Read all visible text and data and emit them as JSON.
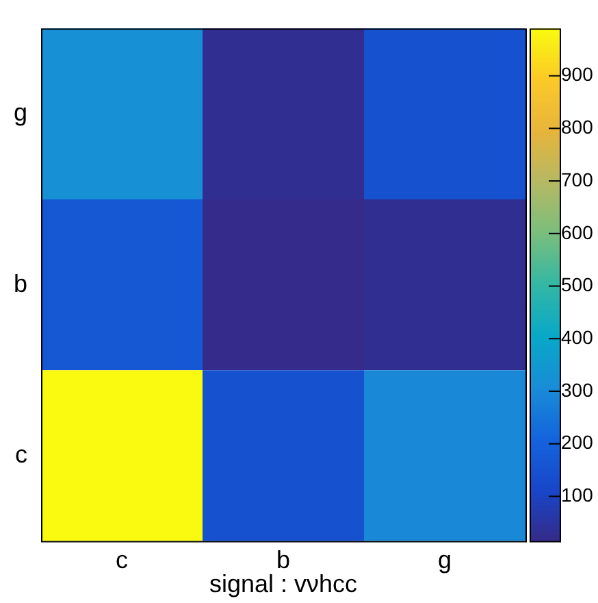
{
  "chart_data": {
    "type": "heatmap",
    "xlabel": "signal : vνhcc",
    "categories": [
      "c",
      "b",
      "g"
    ],
    "y_categories": [
      "g",
      "b",
      "c"
    ],
    "cells": [
      [
        320,
        30,
        150
      ],
      [
        170,
        20,
        30
      ],
      [
        990,
        150,
        300
      ]
    ],
    "clim": [
      15,
      990
    ],
    "cticks": [
      100,
      200,
      300,
      400,
      500,
      600,
      700,
      800,
      900
    ]
  }
}
